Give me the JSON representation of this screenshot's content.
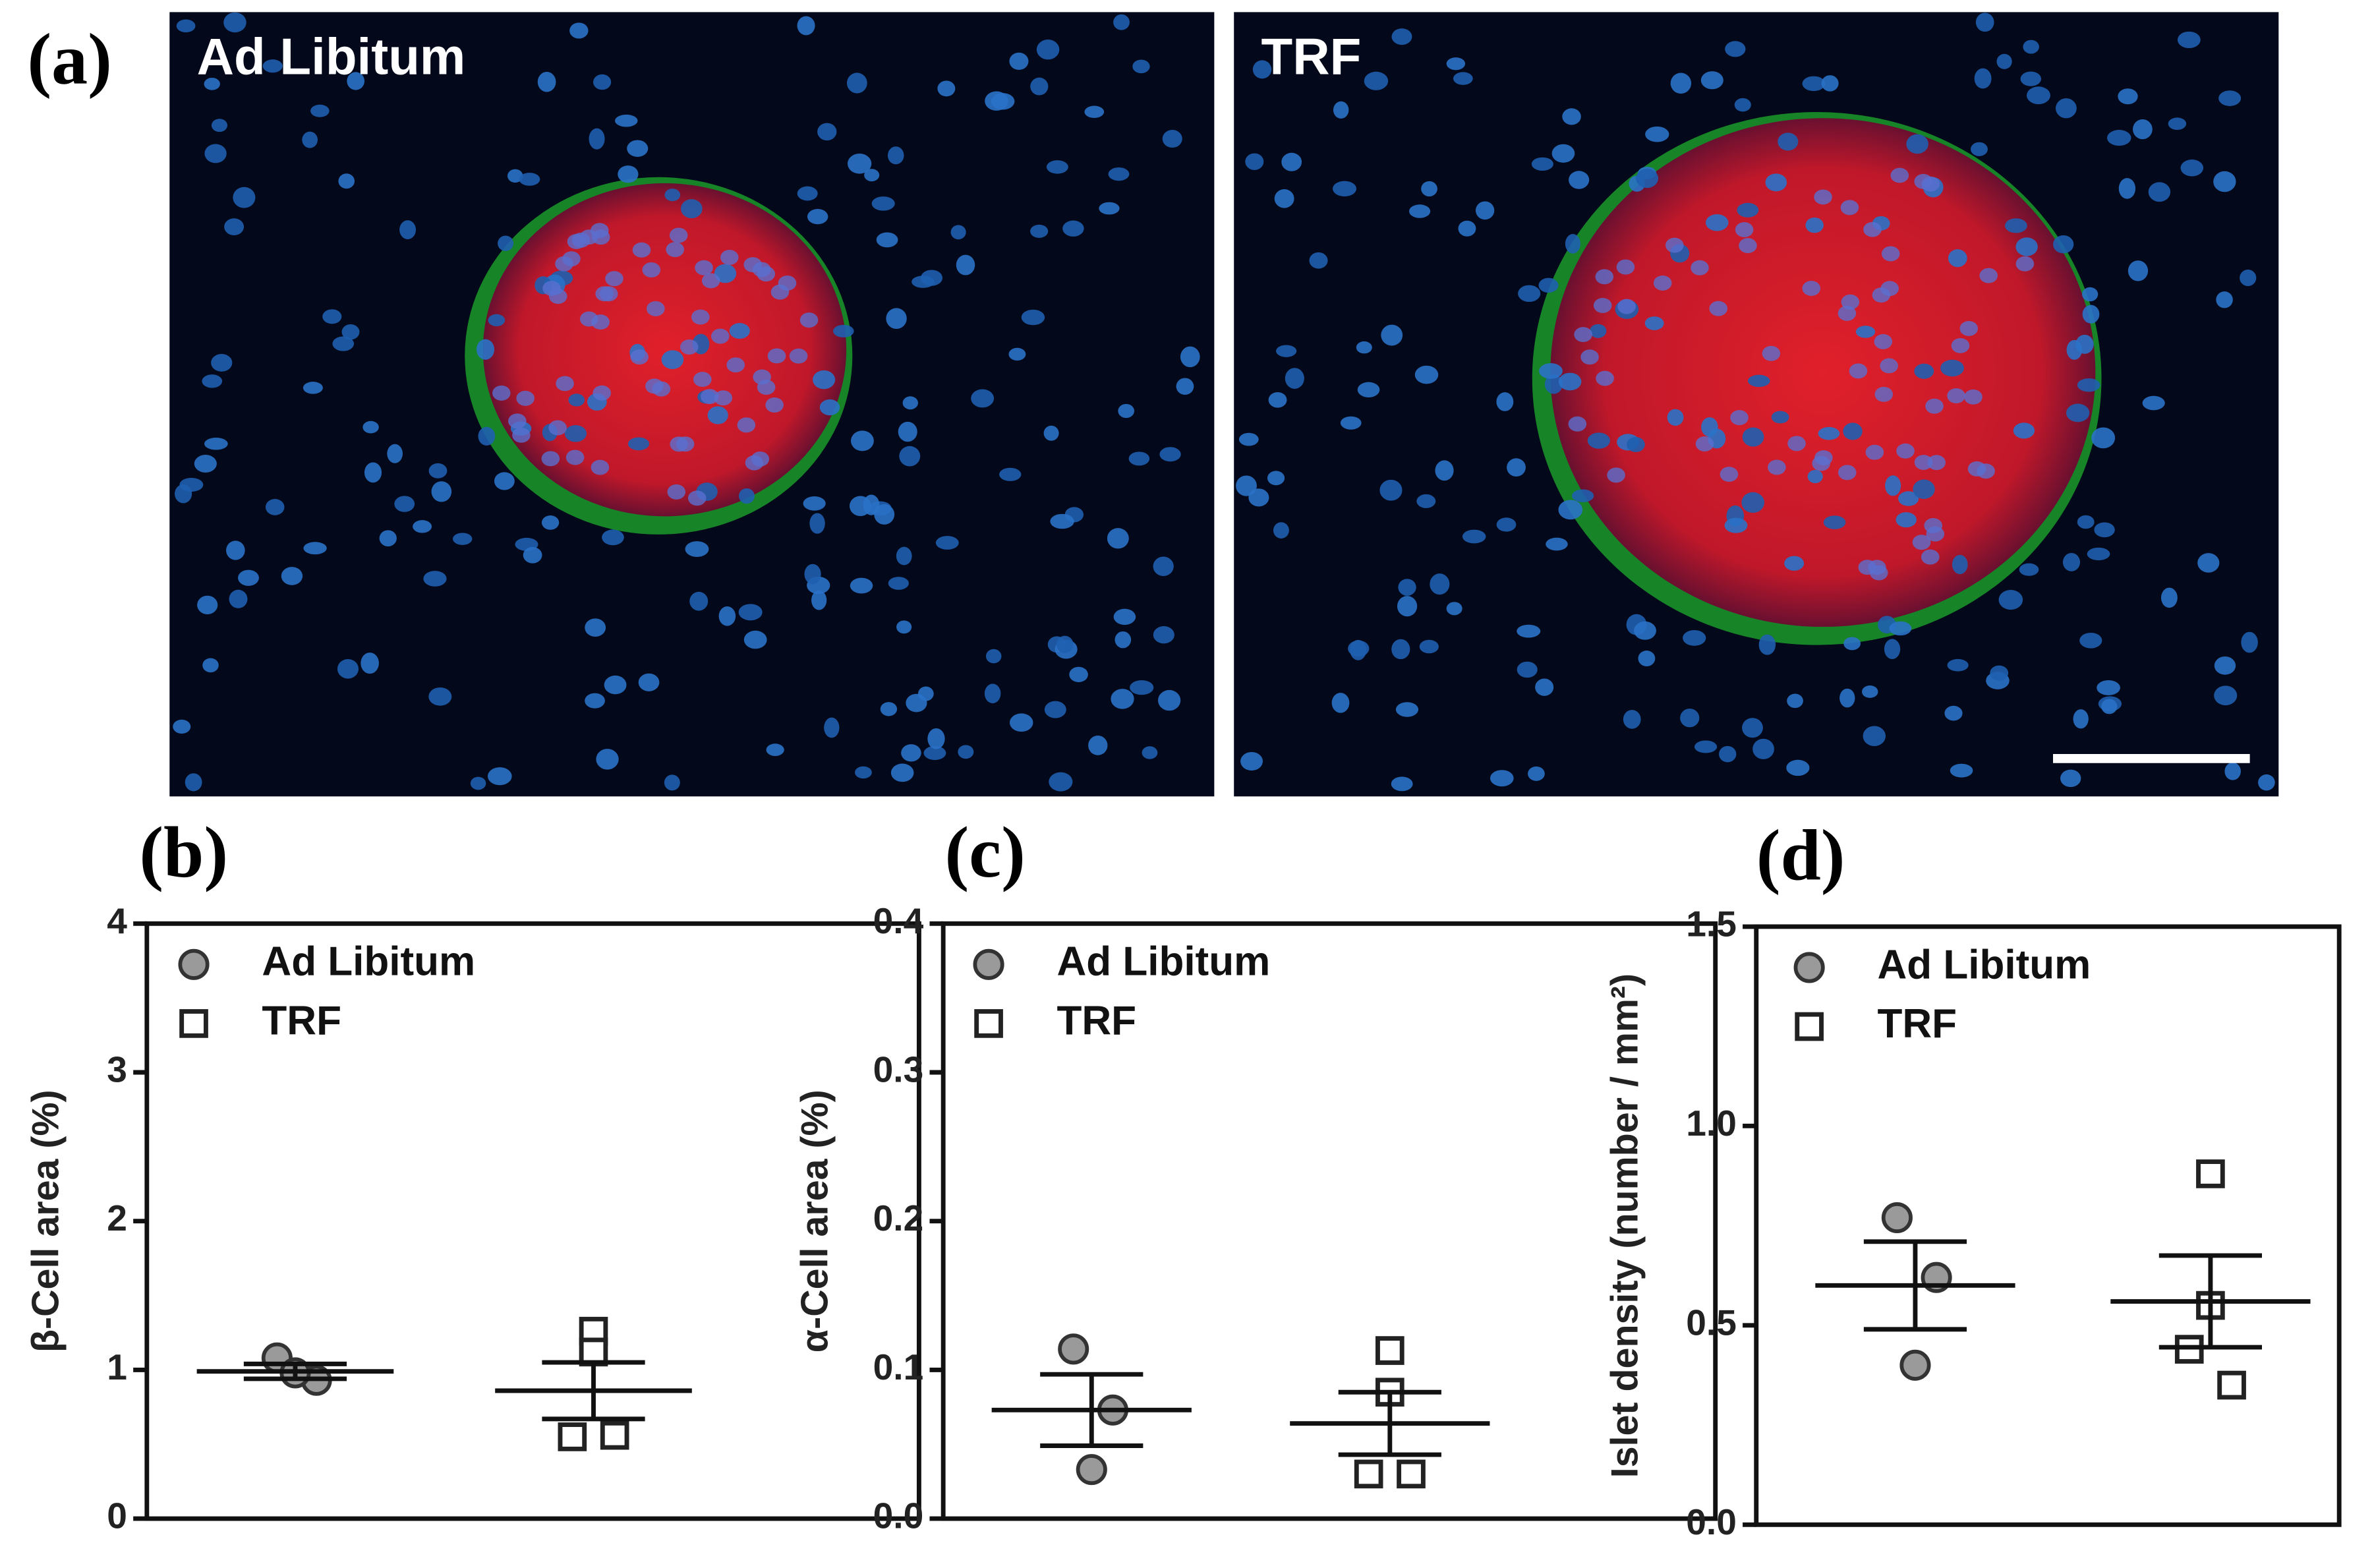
{
  "image_panel": {
    "label": "(a)",
    "images": [
      {
        "title": "Ad Libitum"
      },
      {
        "title": "TRF"
      }
    ]
  },
  "chart_data": [
    {
      "type": "scatter",
      "label": "(b)",
      "y_label": "β-Cell area (%)",
      "ylim": [
        0,
        4
      ],
      "yticks": [
        0,
        1,
        2,
        3,
        4
      ],
      "series": [
        {
          "name": "Ad Libitum",
          "marker": "circle",
          "color": "#9a9a9a",
          "values": [
            1.08,
            0.93,
            0.98
          ],
          "mean": 0.99,
          "error": 0.05
        },
        {
          "name": "TRF",
          "marker": "square",
          "color": "#ffffff",
          "values": [
            1.26,
            1.12,
            0.55,
            0.56
          ],
          "mean": 0.86,
          "error": 0.19
        }
      ]
    },
    {
      "type": "scatter",
      "label": "(c)",
      "y_label": "α-Cell area (%)",
      "ylim": [
        0,
        0.4
      ],
      "yticks": [
        {
          "value": 0,
          "label": "0.0"
        },
        0.1,
        0.2,
        0.3,
        0.4
      ],
      "series": [
        {
          "name": "Ad Libitum",
          "marker": "circle",
          "color": "#9a9a9a",
          "values": [
            0.114,
            0.073,
            0.033
          ],
          "mean": 0.073,
          "error": 0.024
        },
        {
          "name": "TRF",
          "marker": "square",
          "color": "#ffffff",
          "values": [
            0.113,
            0.085,
            0.03,
            0.03
          ],
          "mean": 0.064,
          "error": 0.021
        }
      ]
    },
    {
      "type": "scatter",
      "label": "(d)",
      "y_label": "Islet density (number / mm²)",
      "ylim": [
        0,
        1.5
      ],
      "yticks": [
        {
          "value": 0,
          "label": "0.0"
        },
        {
          "value": 0.5,
          "label": "0.5"
        },
        {
          "value": 1,
          "label": "1.0"
        },
        {
          "value": 1.5,
          "label": "1.5"
        }
      ],
      "series": [
        {
          "name": "Ad Libitum",
          "marker": "circle",
          "color": "#9a9a9a",
          "values": [
            0.77,
            0.62,
            0.4
          ],
          "mean": 0.6,
          "error": 0.11
        },
        {
          "name": "TRF",
          "marker": "square",
          "color": "#ffffff",
          "values": [
            0.88,
            0.55,
            0.44,
            0.35
          ],
          "mean": 0.56,
          "error": 0.115
        }
      ]
    }
  ]
}
